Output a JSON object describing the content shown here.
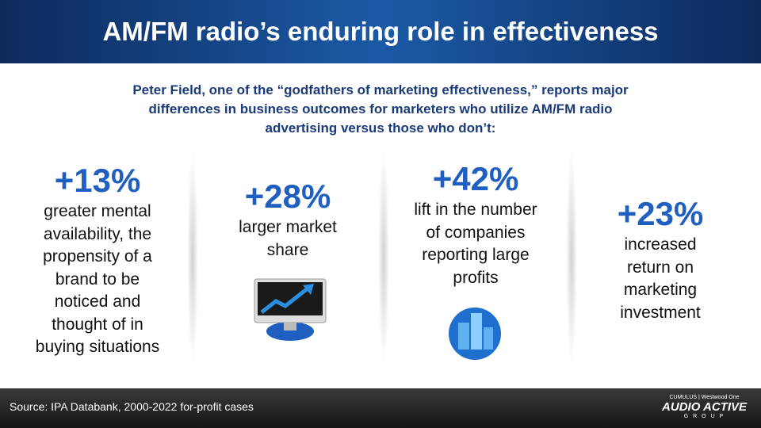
{
  "header": {
    "title": "AM/FM radio’s enduring role in effectiveness"
  },
  "intro": {
    "lines": [
      "Peter Field, one of the “godfathers of marketing effectiveness,” reports major",
      "differences in business outcomes for marketers who utilize AM/FM radio",
      "advertising versus those who don’t:"
    ]
  },
  "stats": [
    {
      "figure": "+13%",
      "description_lines": [
        "greater mental",
        "availability, the",
        "propensity of a",
        "brand to be",
        "noticed and",
        "thought of in",
        "buying situations"
      ]
    },
    {
      "figure": "+28%",
      "description_lines": [
        "larger market",
        "share"
      ]
    },
    {
      "figure": "+42%",
      "description_lines": [
        "lift in the number",
        "of companies",
        "reporting large",
        "profits"
      ]
    },
    {
      "figure": "+23%",
      "description_lines": [
        "increased",
        "return on",
        "marketing",
        "investment"
      ]
    }
  ],
  "footer": {
    "source": "Source: IPA Databank, 2000-2022 for-profit cases",
    "logo": {
      "top": "CUMULUS | Westwood One",
      "brand": "AUDIO ACTIVE",
      "sub": "G R O U P"
    }
  }
}
